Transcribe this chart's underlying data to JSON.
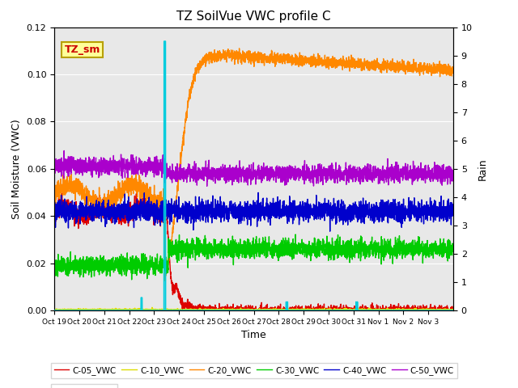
{
  "title": "TZ SoilVue VWC profile C",
  "xlabel": "Time",
  "ylabel_left": "Soil Moisture (VWC)",
  "ylabel_right": "Rain",
  "ylim_left": [
    0.0,
    0.12
  ],
  "ylim_right": [
    0.0,
    10.0
  ],
  "yticks_left": [
    0.0,
    0.02,
    0.04,
    0.06,
    0.08,
    0.1,
    0.12
  ],
  "yticks_right": [
    0.0,
    1.0,
    2.0,
    3.0,
    4.0,
    5.0,
    6.0,
    7.0,
    8.0,
    9.0,
    10.0
  ],
  "bg_color": "#e8e8e8",
  "fig_color": "#ffffff",
  "annotation_text": "TZ_sm",
  "annotation_color": "#cc0000",
  "annotation_bg": "#ffff99",
  "annotation_border": "#b8a000",
  "colors": {
    "C-05_VWC": "#dd0000",
    "C-10_VWC": "#dddd00",
    "C-20_VWC": "#ff8800",
    "C-30_VWC": "#00cc00",
    "C-40_VWC": "#0000cc",
    "C-50_VWC": "#aa00cc",
    "sp1_Rain": "#00ccdd"
  },
  "lw": 1.0,
  "n_points": 3000,
  "n_days": 16,
  "rain_day": 4.42,
  "xtick_labels": [
    "Oct 19",
    "Oct 20",
    "Oct 21",
    "Oct 22",
    "Oct 23",
    "Oct 24",
    "Oct 25",
    "Oct 26",
    "Oct 27",
    "Oct 28",
    "Oct 29",
    "Oct 30",
    "Oct 31",
    "Nov 1",
    "Nov 2",
    "Nov 3"
  ]
}
